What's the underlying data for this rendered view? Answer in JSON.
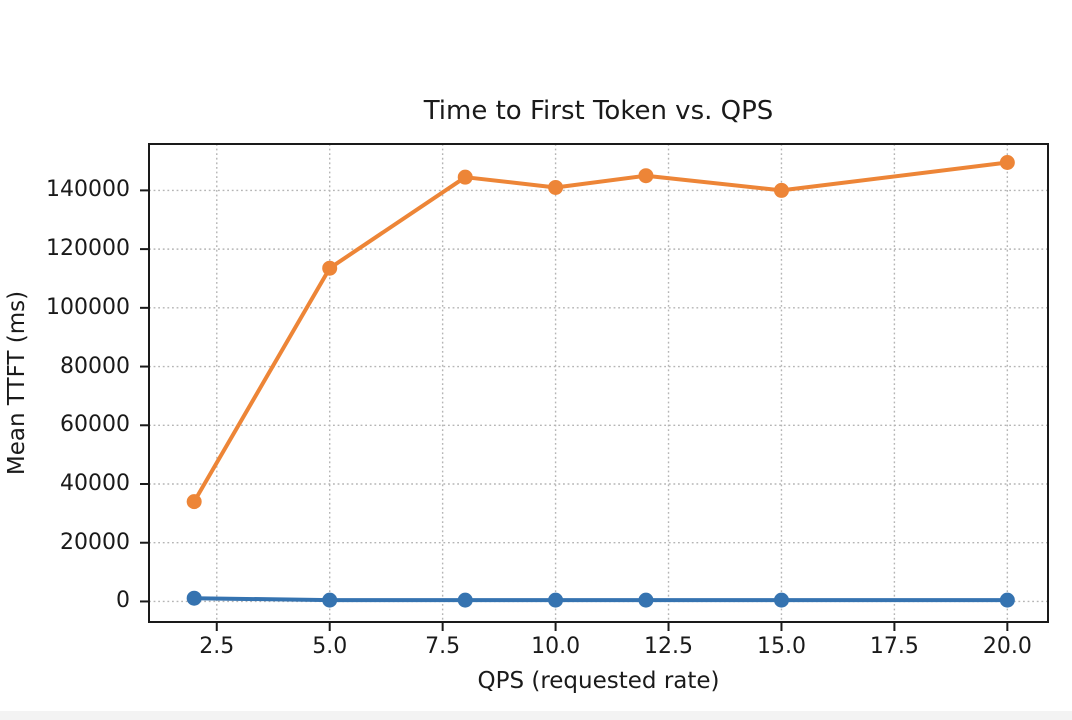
{
  "colors": {
    "background": "#ffffff",
    "frame": "#1a1a1a",
    "grid": "#b5b5b5",
    "text": "#1a1a1a",
    "footer_bar": "#f3f3f3",
    "series_blue": "#3573b0",
    "series_orange": "#ed8537"
  },
  "chart_data": {
    "type": "line",
    "title": "Time to First Token vs. QPS",
    "xlabel": "QPS (requested rate)",
    "ylabel": "Mean TTFT (ms)",
    "x": [
      2,
      5,
      8,
      10,
      12,
      15,
      20
    ],
    "series": [
      {
        "name": "blue",
        "color": "#3573b0",
        "values": [
          1100,
          450,
          450,
          450,
          450,
          450,
          450
        ]
      },
      {
        "name": "orange",
        "color": "#ed8537",
        "values": [
          34000,
          113500,
          144500,
          141000,
          145000,
          140000,
          149500
        ]
      }
    ],
    "x_ticks": [
      2.5,
      5.0,
      7.5,
      10.0,
      12.5,
      15.0,
      17.5,
      20.0
    ],
    "x_tick_labels": [
      "2.5",
      "5.0",
      "7.5",
      "10.0",
      "12.5",
      "15.0",
      "17.5",
      "20.0"
    ],
    "y_ticks": [
      0,
      20000,
      40000,
      60000,
      80000,
      100000,
      120000,
      140000
    ],
    "y_tick_labels": [
      "0",
      "20000",
      "40000",
      "60000",
      "80000",
      "100000",
      "120000",
      "140000"
    ],
    "xlim": [
      1.0,
      20.9
    ],
    "ylim": [
      -7000,
      155800
    ],
    "grid": true,
    "grid_style": "dotted",
    "legend": "none"
  }
}
